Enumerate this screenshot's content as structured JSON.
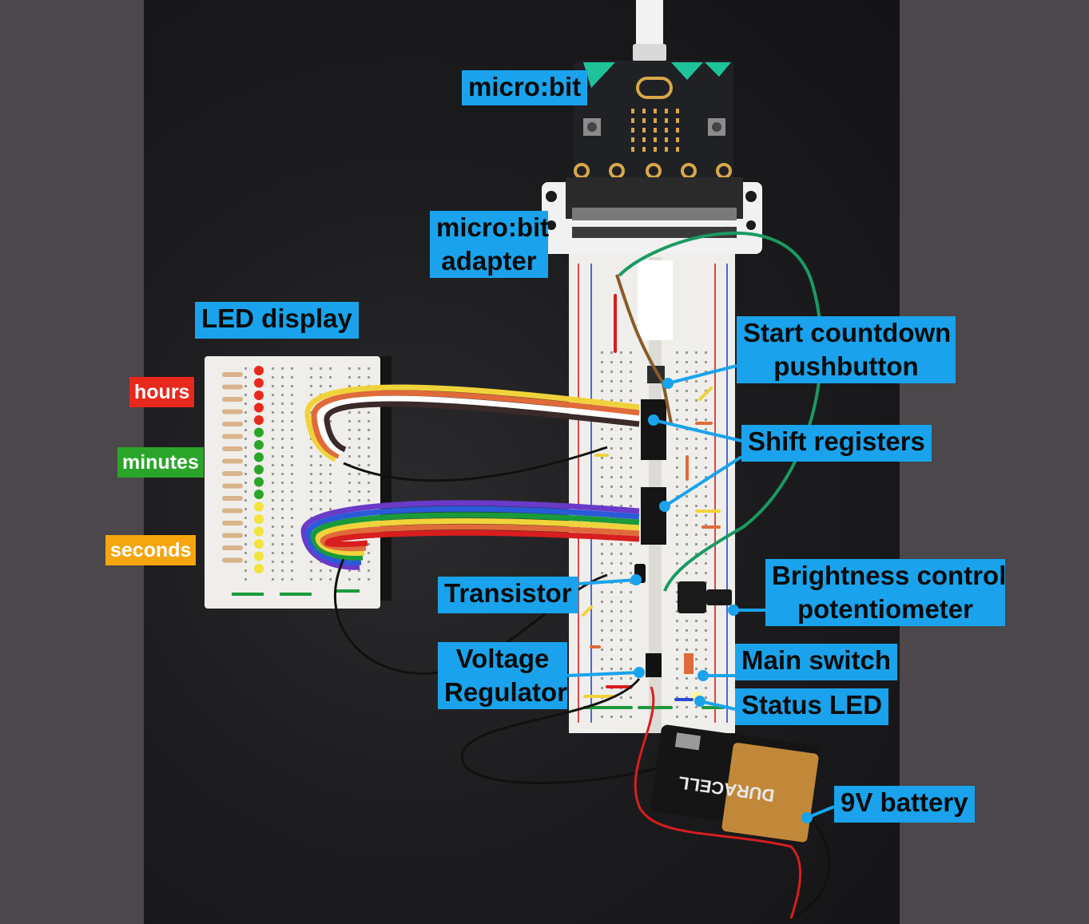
{
  "labels": {
    "microbit": "micro:bit",
    "adapter_line1": "micro:bit",
    "adapter_line2": "adapter",
    "led_display": "LED display",
    "start_line1": "Start countdown",
    "start_line2": "pushbutton",
    "shift_registers": "Shift registers",
    "transistor": "Transistor",
    "brightness_line1": "Brightness control",
    "brightness_line2": "potentiometer",
    "voltage_line1": "Voltage",
    "voltage_line2": "Regulator",
    "main_switch": "Main switch",
    "status_led": "Status LED",
    "battery": "9V battery"
  },
  "led_tags": {
    "hours": "hours",
    "minutes": "minutes",
    "seconds": "seconds"
  },
  "battery_print": "DURACELL",
  "colors": {
    "label_bg": "#1aa3ec",
    "hours": "#e8281c",
    "minutes": "#2aa52a",
    "seconds": "#f5a60e",
    "wire_green": "#1a9a62",
    "wire_black": "#111111",
    "wire_red": "#d81e1e"
  }
}
